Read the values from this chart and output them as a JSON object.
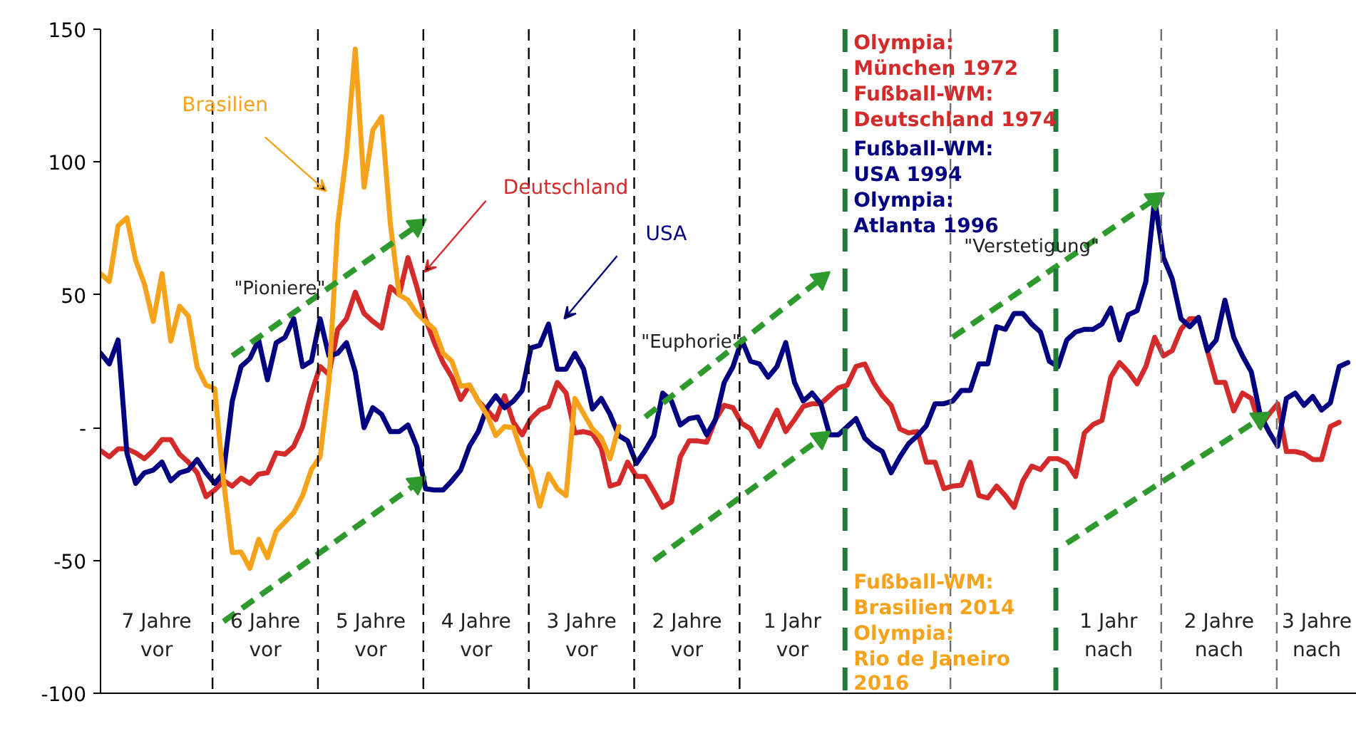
{
  "chart_data": {
    "type": "line",
    "ylim": [
      -100,
      150
    ],
    "categories": [
      null,
      null,
      null,
      null,
      null,
      null,
      null,
      null,
      null,
      null,
      null,
      null,
      null,
      null,
      null,
      null,
      null,
      null,
      null,
      null,
      null,
      null,
      null,
      null,
      null,
      null,
      null,
      null,
      null,
      null,
      null,
      null,
      null,
      null,
      null,
      null,
      null,
      null,
      null,
      null,
      null,
      null,
      null,
      null,
      null,
      null,
      null,
      null,
      null,
      null,
      null,
      null,
      null,
      null,
      null,
      null,
      null,
      null,
      null,
      null,
      null,
      null,
      null,
      null,
      null,
      null,
      null,
      null,
      null,
      null,
      null,
      null,
      null,
      null,
      null,
      null,
      null,
      null,
      null,
      null,
      null,
      null,
      null,
      null,
      null,
      null,
      null,
      null,
      null,
      null,
      null,
      null,
      null,
      null,
      null,
      null,
      null,
      null,
      null,
      null,
      null,
      null,
      null,
      null,
      null,
      null,
      null,
      null,
      null,
      null,
      null,
      null,
      null,
      null,
      null,
      null,
      null,
      null,
      null,
      null,
      null,
      null,
      null,
      null,
      null,
      null,
      null,
      null,
      null,
      null,
      null,
      null,
      null,
      null,
      null,
      null,
      null,
      null,
      null,
      null,
      null,
      null,
      null,
      null
    ],
    "yticks": [
      -100,
      -50,
      {
        "value": 0,
        "label": "-"
      },
      50,
      100,
      150
    ],
    "tick_labels": "y",
    "grid": false,
    "legend": false,
    "marker": "none",
    "line_style": "solid",
    "series": [
      {
        "name": "Deutschland",
        "color": "#d42a2a",
        "values": [
          -8.6,
          -11,
          -8,
          -8,
          -9.5,
          -11.7,
          -8.6,
          -4.5,
          -4.5,
          -10,
          -13,
          -17,
          -26,
          -23.5,
          -20,
          -22,
          -19,
          -21,
          -17.5,
          -17,
          -9.5,
          -10,
          -7,
          0.4,
          13,
          23,
          20,
          37,
          41,
          51,
          43,
          40,
          37.5,
          53,
          50,
          64,
          53,
          41,
          32,
          24.5,
          19,
          10.6,
          16,
          10,
          6.6,
          3,
          12,
          2,
          -2.7,
          3.4,
          6.6,
          8,
          17,
          13,
          -2,
          -1.5,
          -2.3,
          -7.7,
          -22,
          -21,
          -13,
          -18.4,
          -18.4,
          -24,
          -30,
          -28,
          -11,
          -5,
          -5,
          -5.5,
          3,
          8.4,
          7.5,
          1.6,
          -0.5,
          -7,
          0,
          6.6,
          -1.5,
          3,
          8,
          9,
          9,
          12,
          15,
          16,
          23,
          24,
          17,
          12,
          8.4,
          -0.5,
          -2,
          -1.5,
          -13,
          -13,
          -23,
          -22,
          -21.7,
          -13,
          -25.6,
          -26.5,
          -22,
          -25.6,
          -30,
          -20,
          -14.5,
          -15.8,
          -11.7,
          -11.7,
          -13.4,
          -18.4,
          -2,
          1.2,
          2.7,
          19,
          24.5,
          21,
          16.5,
          23,
          34,
          27,
          29,
          37,
          41,
          41,
          29,
          17,
          17,
          6.3,
          13,
          11,
          0.4,
          5,
          9,
          -9,
          -9,
          -9.8,
          -12,
          -12,
          0.4,
          2,
          null,
          null
        ]
      },
      {
        "name": "USA",
        "color": "#000080",
        "values": [
          28,
          24,
          33,
          -9.5,
          -21,
          -17,
          -16,
          -13,
          -20,
          -17,
          -16,
          -12,
          -17,
          -21,
          -17,
          10,
          23,
          26,
          33,
          18,
          32,
          34,
          41,
          23,
          25,
          41,
          27,
          28,
          32,
          21,
          0,
          7.5,
          5,
          -1.5,
          -1.5,
          1,
          -7,
          -23,
          -23.5,
          -23.5,
          -20,
          -16,
          -7,
          -1.5,
          7.5,
          12,
          7.5,
          10,
          14,
          30,
          31,
          39,
          22,
          22,
          28,
          22,
          7,
          11,
          5,
          -3,
          -5,
          -13.5,
          -8.6,
          -3,
          13,
          10,
          1,
          3.4,
          4,
          -2.7,
          3,
          17,
          23,
          33,
          25,
          24,
          19,
          23,
          32,
          17,
          10,
          13,
          9,
          -2.7,
          -2.7,
          0.4,
          3.4,
          -4,
          -7,
          -9,
          -17,
          -11,
          -6,
          -3,
          0.7,
          9,
          9,
          10,
          14,
          14,
          24,
          24,
          38,
          37,
          43,
          43,
          39,
          36,
          25,
          23,
          33,
          36,
          37,
          37,
          39,
          45,
          33,
          42.5,
          44,
          55,
          86,
          64,
          56,
          41,
          38,
          41.5,
          29,
          33,
          48,
          34,
          27,
          21,
          5,
          -1.5,
          -7,
          11,
          13,
          8.4,
          11.7,
          6.6,
          9.3,
          23,
          24.5,
          null
        ]
      },
      {
        "name": "Brasilien",
        "color": "#f7a21b",
        "values": [
          58,
          55,
          76,
          79,
          63,
          54,
          40,
          58,
          32.6,
          45.7,
          42,
          22.7,
          16,
          14.7,
          -20,
          -47,
          -46.8,
          -53,
          -42,
          -49,
          -39,
          -35.5,
          -32,
          -25.6,
          -15.8,
          -11,
          17,
          76.5,
          103,
          142.5,
          90.5,
          112,
          117,
          76.5,
          50,
          48,
          43,
          40,
          37,
          28,
          25,
          15.6,
          16,
          10,
          4.8,
          -3,
          0.4,
          0,
          -10,
          -15.8,
          -29.6,
          -17.5,
          -23,
          -25.6,
          11,
          5.2,
          -0.5,
          -3.8,
          -11.7,
          0.4,
          null,
          null,
          null,
          null,
          null,
          null,
          null,
          null,
          null,
          null,
          null,
          null,
          null,
          null,
          null,
          null,
          null,
          null,
          null,
          null,
          null,
          null,
          null,
          null,
          null,
          null,
          null,
          null,
          null,
          null,
          null,
          null,
          null,
          null,
          null,
          null,
          null,
          null,
          null,
          null,
          null,
          null,
          null,
          null,
          null,
          null,
          null,
          null,
          null,
          null,
          null,
          null,
          null,
          null,
          null,
          null,
          null,
          null,
          null,
          null,
          null,
          null,
          null,
          null,
          null,
          null,
          null,
          null,
          null,
          null,
          null,
          null,
          null,
          null,
          null,
          null,
          null,
          null,
          null,
          null,
          null,
          null,
          null,
          null
        ]
      },
      {
        "color": "#2e9a2e",
        "line_style": "dashed",
        "marker": "triangle",
        "values": [
          null,
          null,
          null,
          null,
          null,
          null,
          null,
          null,
          null,
          null,
          null,
          null,
          null,
          null,
          null,
          27,
          null,
          null,
          null,
          null,
          null,
          null,
          null,
          null,
          null,
          null,
          null,
          null,
          null,
          null,
          null,
          null,
          null,
          null,
          null,
          null,
          76,
          null,
          null,
          null,
          null,
          null,
          null,
          null,
          null,
          null,
          null,
          null,
          null,
          null,
          null,
          null,
          null,
          null,
          null,
          null,
          null,
          null,
          null,
          null,
          null,
          null,
          null,
          null,
          null,
          null,
          null,
          null,
          null,
          null,
          null,
          null,
          null,
          null,
          null,
          null,
          null,
          null,
          null,
          null,
          null,
          null,
          null,
          null,
          null,
          null,
          null,
          null,
          null,
          null,
          null,
          null,
          null,
          null,
          null,
          null,
          null,
          null,
          null,
          null,
          null,
          null,
          null,
          null,
          null,
          null,
          null,
          null,
          null,
          null,
          null,
          null,
          null,
          null,
          null,
          null,
          null,
          null,
          null,
          null,
          null,
          null,
          null,
          null,
          null,
          null,
          null,
          null,
          null,
          null,
          null,
          null,
          null,
          null,
          null,
          null,
          null,
          null,
          null,
          null,
          null,
          null,
          null,
          null
        ]
      },
      {
        "color": "#2e9a2e",
        "line_style": "dashed",
        "marker": "triangle",
        "values": [
          null,
          null,
          null,
          null,
          null,
          null,
          null,
          null,
          null,
          null,
          null,
          null,
          null,
          null,
          -73,
          null,
          null,
          null,
          null,
          null,
          null,
          null,
          null,
          null,
          null,
          null,
          null,
          null,
          null,
          null,
          null,
          null,
          null,
          null,
          null,
          null,
          -21,
          null,
          null,
          null,
          null,
          null,
          null,
          null,
          null,
          null,
          null,
          null,
          null,
          null,
          null,
          null,
          null,
          null,
          null,
          null,
          null,
          null,
          null,
          null,
          null,
          null,
          null,
          null,
          null,
          null,
          null,
          null,
          null,
          null,
          null,
          null,
          null,
          null,
          null,
          null,
          null,
          null,
          null,
          null,
          null,
          null,
          null,
          null,
          null,
          null,
          null,
          null,
          null,
          null,
          null,
          null,
          null,
          null,
          null,
          null,
          null,
          null,
          null,
          null,
          null,
          null,
          null,
          null,
          null,
          null,
          null,
          null,
          null,
          null,
          null,
          null,
          null,
          null,
          null,
          null,
          null,
          null,
          null,
          null,
          null,
          null,
          null,
          null,
          null,
          null,
          null,
          null,
          null,
          null,
          null,
          null,
          null,
          null,
          null,
          null,
          null,
          null,
          null,
          null,
          null,
          null,
          null,
          null
        ]
      },
      {
        "color": "#2e9a2e",
        "line_style": "dashed",
        "marker": "triangle",
        "values": [
          null,
          null,
          null,
          null,
          null,
          null,
          null,
          null,
          null,
          null,
          null,
          null,
          null,
          null,
          null,
          null,
          null,
          null,
          null,
          null,
          null,
          null,
          null,
          null,
          null,
          null,
          null,
          null,
          null,
          null,
          null,
          null,
          null,
          null,
          null,
          null,
          null,
          null,
          null,
          null,
          null,
          null,
          null,
          null,
          null,
          null,
          null,
          null,
          null,
          null,
          null,
          null,
          null,
          null,
          null,
          null,
          null,
          null,
          null,
          null,
          null,
          null,
          4,
          null,
          null,
          null,
          null,
          null,
          null,
          null,
          null,
          null,
          null,
          null,
          null,
          null,
          null,
          null,
          null,
          null,
          null,
          null,
          56,
          null,
          null,
          null,
          null,
          null,
          null,
          null,
          null,
          null,
          null,
          null,
          null,
          null,
          null,
          null,
          null,
          null,
          null,
          null,
          null,
          null,
          null,
          null,
          null,
          null,
          null,
          null,
          null,
          null,
          null,
          null,
          null,
          null,
          null,
          null,
          null,
          null,
          null,
          null,
          null,
          null,
          null,
          null,
          null,
          null,
          null,
          null,
          null,
          null,
          null,
          null,
          null,
          null,
          null,
          null,
          null,
          null,
          null,
          null,
          null,
          null
        ]
      },
      {
        "color": "#2e9a2e",
        "line_style": "dashed",
        "marker": "triangle",
        "values": [
          null,
          null,
          null,
          null,
          null,
          null,
          null,
          null,
          null,
          null,
          null,
          null,
          null,
          null,
          null,
          null,
          null,
          null,
          null,
          null,
          null,
          null,
          null,
          null,
          null,
          null,
          null,
          null,
          null,
          null,
          null,
          null,
          null,
          null,
          null,
          null,
          null,
          null,
          null,
          null,
          null,
          null,
          null,
          null,
          null,
          null,
          null,
          null,
          null,
          null,
          null,
          null,
          null,
          null,
          null,
          null,
          null,
          null,
          null,
          null,
          null,
          null,
          null,
          -50,
          null,
          null,
          null,
          null,
          null,
          null,
          null,
          null,
          null,
          null,
          null,
          null,
          null,
          null,
          null,
          null,
          null,
          null,
          -4,
          null,
          null,
          null,
          null,
          null,
          null,
          null,
          null,
          null,
          null,
          null,
          null,
          null,
          null,
          null,
          null,
          null,
          null,
          null,
          null,
          null,
          null,
          null,
          null,
          null,
          null,
          null,
          null,
          null,
          null,
          null,
          null,
          null,
          null,
          null,
          null,
          null,
          null,
          null,
          null,
          null,
          null,
          null,
          null,
          null,
          null,
          null,
          null,
          null,
          null,
          null,
          null,
          null,
          null,
          null,
          null,
          null,
          null,
          null,
          null,
          null
        ]
      },
      {
        "color": "#2e9a2e",
        "line_style": "dashed",
        "marker": "triangle",
        "values": [
          null,
          null,
          null,
          null,
          null,
          null,
          null,
          null,
          null,
          null,
          null,
          null,
          null,
          null,
          null,
          null,
          null,
          null,
          null,
          null,
          null,
          null,
          null,
          null,
          null,
          null,
          null,
          null,
          null,
          null,
          null,
          null,
          null,
          null,
          null,
          null,
          null,
          null,
          null,
          null,
          null,
          null,
          null,
          null,
          null,
          null,
          null,
          null,
          null,
          null,
          null,
          null,
          null,
          null,
          null,
          null,
          null,
          null,
          null,
          null,
          null,
          null,
          null,
          null,
          null,
          null,
          null,
          null,
          null,
          null,
          null,
          null,
          null,
          null,
          null,
          null,
          null,
          null,
          null,
          null,
          null,
          null,
          null,
          null,
          null,
          null,
          null,
          null,
          null,
          null,
          null,
          null,
          null,
          null,
          null,
          null,
          null,
          34,
          null,
          null,
          null,
          null,
          null,
          null,
          null,
          null,
          null,
          null,
          null,
          null,
          null,
          null,
          null,
          null,
          null,
          null,
          null,
          null,
          null,
          null,
          86,
          null,
          null,
          null,
          null,
          null,
          null,
          null,
          null,
          null,
          null,
          null,
          null,
          null,
          null,
          null,
          null,
          null,
          null,
          null,
          null,
          null,
          null,
          null
        ]
      },
      {
        "color": "#2e9a2e",
        "line_style": "dashed",
        "marker": "triangle",
        "values": [
          null,
          null,
          null,
          null,
          null,
          null,
          null,
          null,
          null,
          null,
          null,
          null,
          null,
          null,
          null,
          null,
          null,
          null,
          null,
          null,
          null,
          null,
          null,
          null,
          null,
          null,
          null,
          null,
          null,
          null,
          null,
          null,
          null,
          null,
          null,
          null,
          null,
          null,
          null,
          null,
          null,
          null,
          null,
          null,
          null,
          null,
          null,
          null,
          null,
          null,
          null,
          null,
          null,
          null,
          null,
          null,
          null,
          null,
          null,
          null,
          null,
          null,
          null,
          null,
          null,
          null,
          null,
          null,
          null,
          null,
          null,
          null,
          null,
          null,
          null,
          null,
          null,
          null,
          null,
          null,
          null,
          null,
          null,
          null,
          null,
          null,
          null,
          null,
          null,
          null,
          null,
          null,
          null,
          null,
          null,
          null,
          null,
          null,
          null,
          null,
          null,
          null,
          null,
          null,
          null,
          null,
          null,
          null,
          null,
          null,
          -43.5,
          null,
          null,
          null,
          null,
          null,
          null,
          null,
          null,
          null,
          null,
          null,
          null,
          null,
          null,
          null,
          null,
          null,
          null,
          null,
          null,
          null,
          3.4,
          null,
          null,
          null,
          null,
          null,
          null,
          null,
          null,
          null,
          null,
          null
        ]
      }
    ],
    "annotations": [
      "\"Pioniere\"",
      "\"Euphorie\"",
      "\"Verstetigung\"",
      "Olympia:\nMünchen 1972\nFußball-WM:\nDeutschland 1974",
      "Fußball-WM:\nUSA 1994\nOlympia:\nAtlanta 1996",
      "Fußball-WM:\nBrasilien 2014\nOlympia:\nRio de Janeiro\n2016",
      "7 Jahre\nvor",
      "6 Jahre\nvor",
      "5 Jahre\nvor",
      "4 Jahre\nvor",
      "3 Jahre\nvor",
      "2 Jahre\nvor",
      "1 Jahr\nvor",
      "1 Jahr\nnach",
      "2 Jahre\nnach",
      "3 Jahre\nnach"
    ]
  }
}
